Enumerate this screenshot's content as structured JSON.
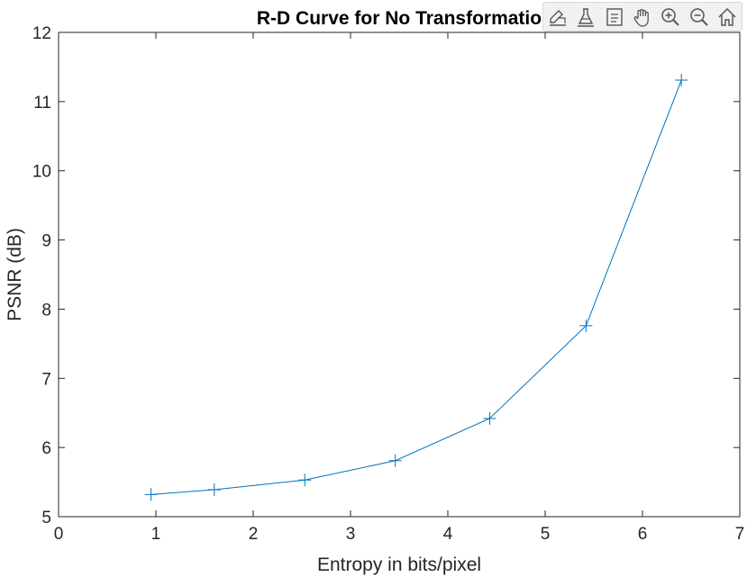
{
  "chart_data": {
    "type": "line",
    "title": "R-D Curve for  No Transformatio",
    "xlabel": "Entropy in bits/pixel",
    "ylabel": "PSNR (dB)",
    "xlim": [
      0,
      7
    ],
    "ylim": [
      5,
      12
    ],
    "xticks": [
      "0",
      "1",
      "2",
      "3",
      "4",
      "5",
      "6",
      "7"
    ],
    "yticks": [
      "5",
      "6",
      "7",
      "8",
      "9",
      "10",
      "11",
      "12"
    ],
    "grid": false,
    "marker": "+",
    "line_color": "#0072bd",
    "series": [
      {
        "x": [
          0.95,
          1.6,
          2.53,
          3.46,
          4.43,
          5.42,
          6.4
        ],
        "y": [
          5.32,
          5.39,
          5.53,
          5.81,
          6.42,
          7.76,
          11.31
        ]
      }
    ]
  },
  "toolbar": {
    "icons": [
      "brush-edit-icon",
      "data-tip-icon",
      "legend-icon",
      "pan-hand-icon",
      "zoom-in-icon",
      "zoom-out-icon",
      "home-icon"
    ]
  }
}
